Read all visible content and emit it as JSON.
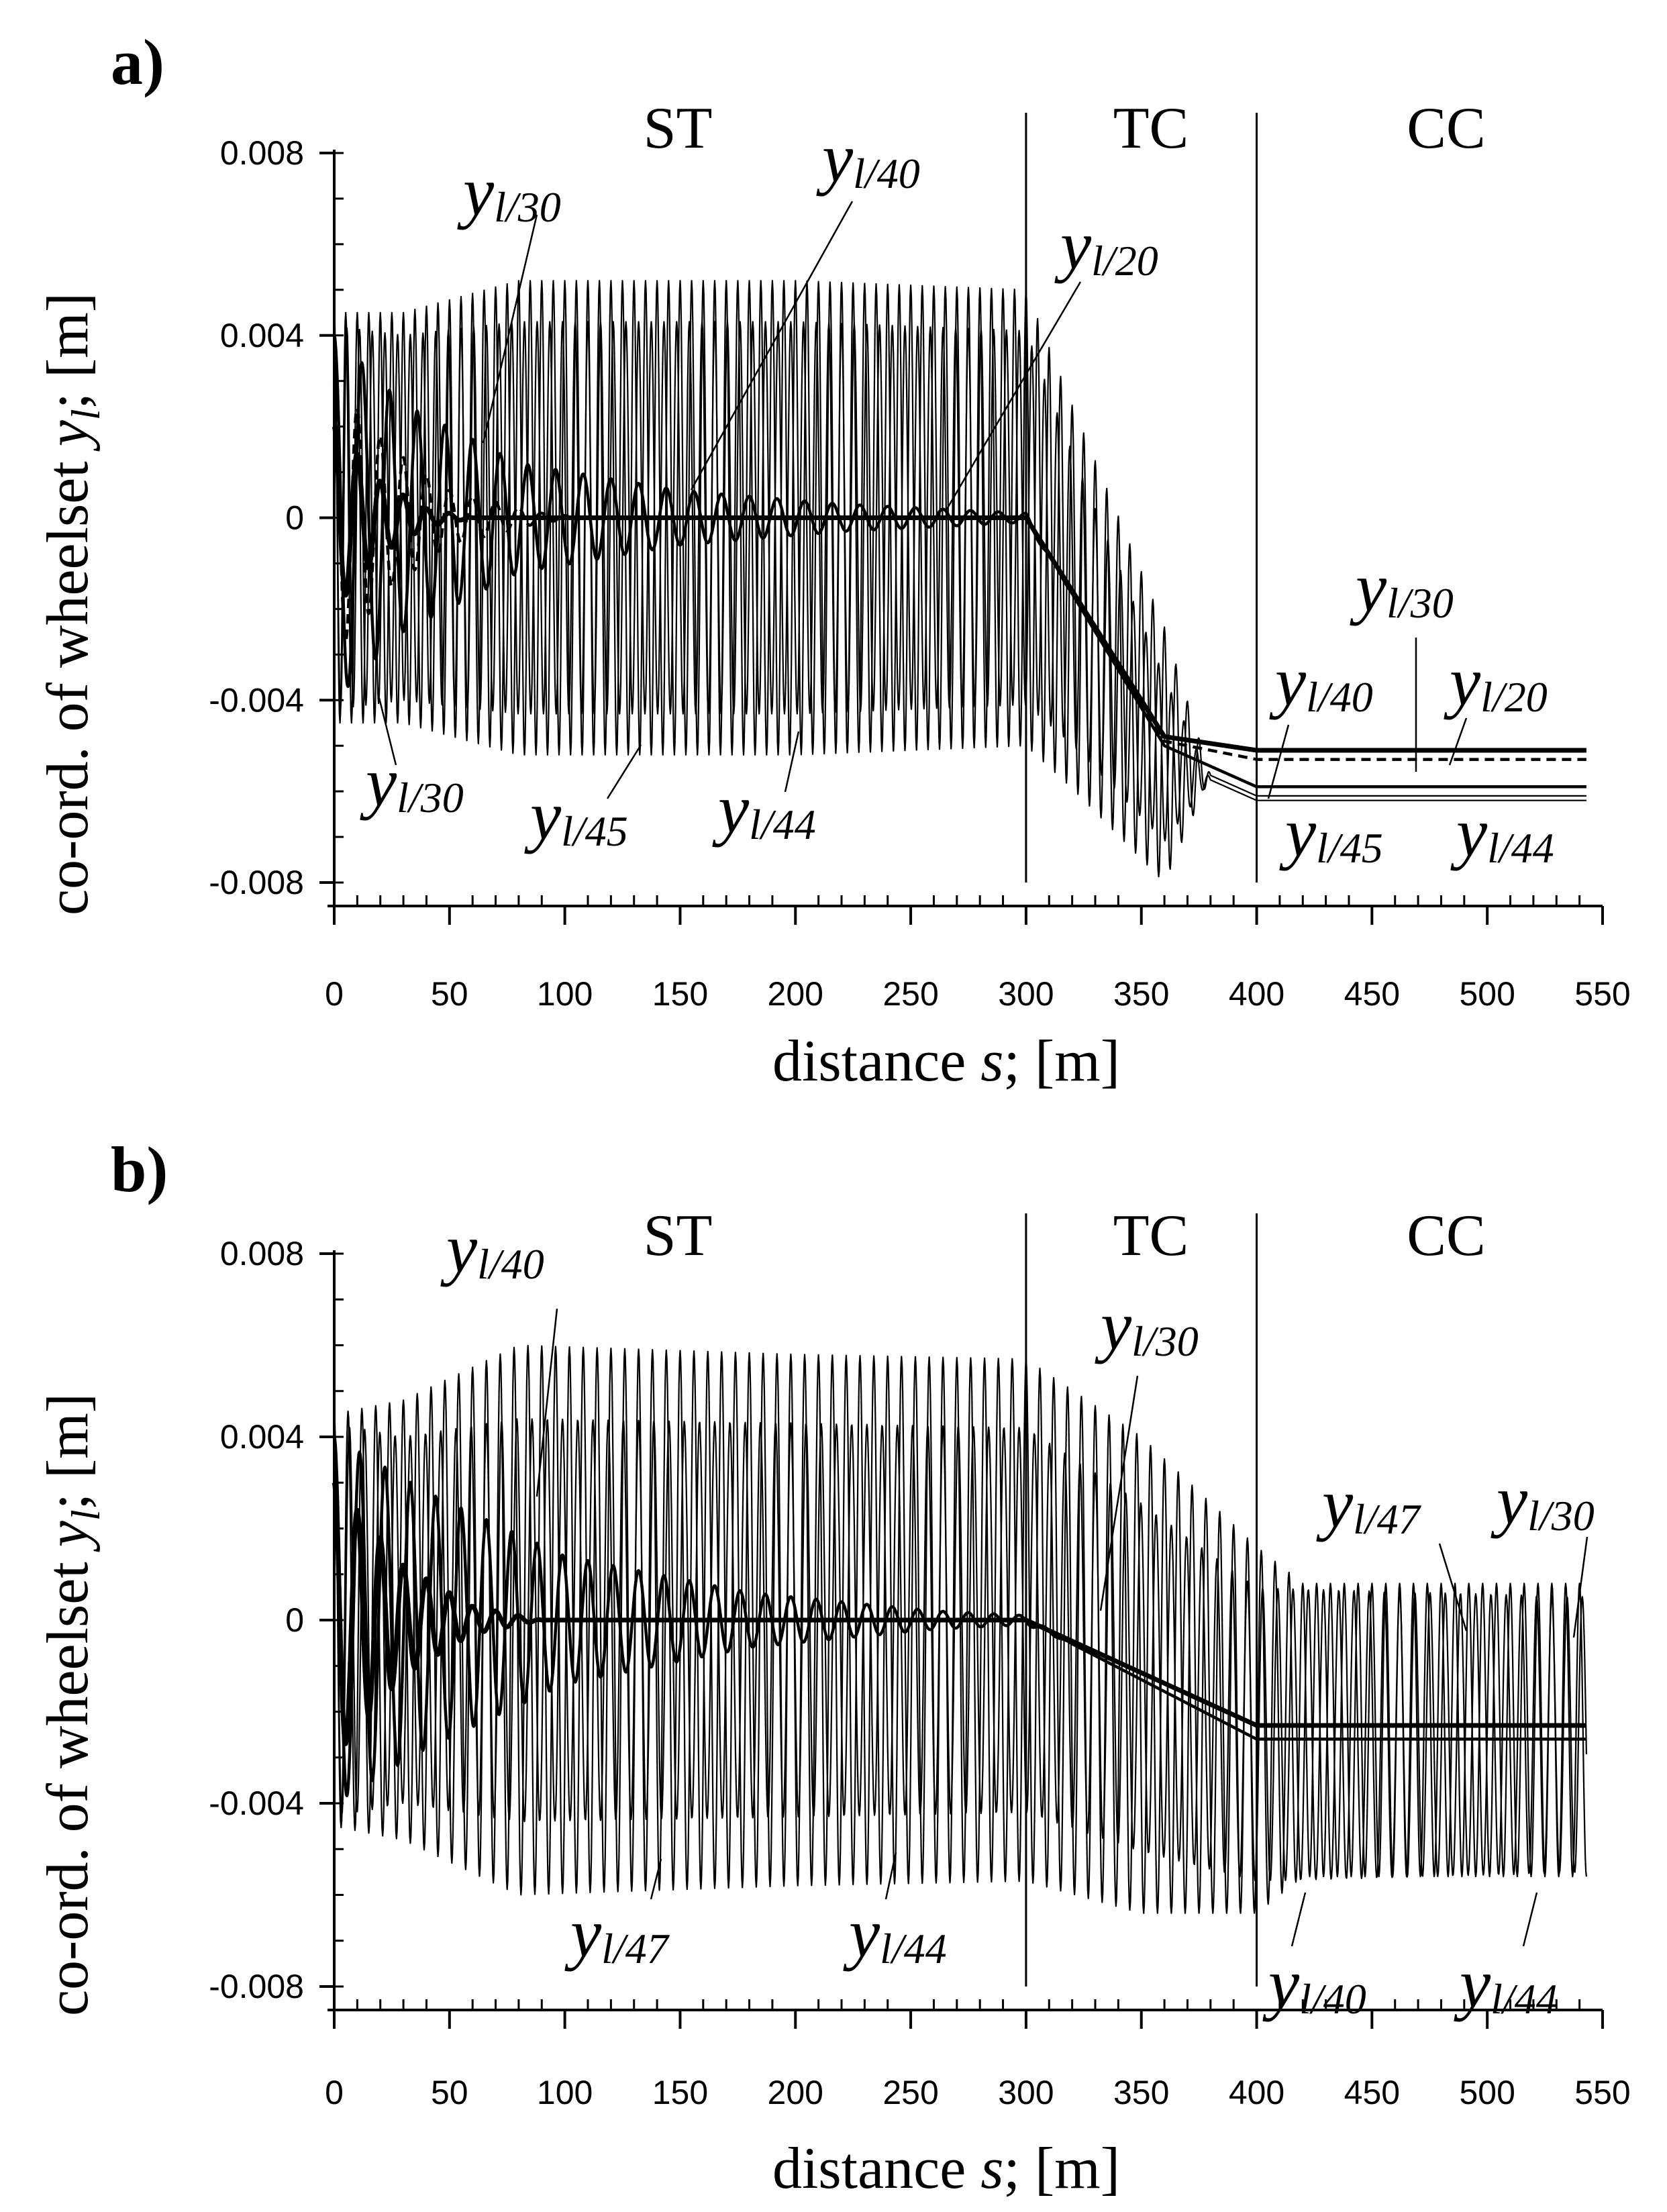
{
  "chart_data": [
    {
      "panel": "a)",
      "type": "line",
      "xlabel_prefix": "distance ",
      "xlabel_var": "s",
      "xlabel_suffix": "; [m]",
      "ylabel_prefix": "co-ord. of wheelset ",
      "ylabel_var": "y",
      "ylabel_sub": "l",
      "ylabel_suffix": "; [m]",
      "xlim": [
        0,
        550
      ],
      "ylim": [
        -0.008,
        0.008
      ],
      "xticks": [
        0,
        50,
        100,
        150,
        200,
        250,
        300,
        350,
        400,
        450,
        500,
        550
      ],
      "xtick_labels": [
        "0",
        "50",
        "100",
        "150",
        "200",
        "250",
        "300",
        "350",
        "400",
        "450",
        "500",
        "550"
      ],
      "yticks": [
        0.008,
        0.004,
        0,
        -0.004,
        -0.008
      ],
      "ytick_labels": [
        "0.008",
        "0.004",
        "0",
        "-0.004",
        "-0.008"
      ],
      "regions": [
        {
          "label": "ST",
          "start": 0,
          "end": 300
        },
        {
          "label": "TC",
          "start": 300,
          "end": 400
        },
        {
          "label": "CC",
          "start": 400,
          "end": 550
        }
      ],
      "series": [
        {
          "name": "y_l/45",
          "style": "thin",
          "mode": "osc",
          "points": [
            [
              0,
              0.0045
            ],
            [
              30,
              0.0045
            ],
            [
              80,
              0.0052
            ],
            [
              200,
              0.0052
            ],
            [
              300,
              0.005
            ],
            [
              320,
              0.0042
            ],
            [
              360,
              0.0028
            ],
            [
              380,
              0
            ]
          ],
          "period": 5,
          "baseline": [
            [
              0,
              0
            ],
            [
              300,
              0
            ],
            [
              360,
              -0.0052
            ],
            [
              400,
              -0.0061
            ],
            [
              550,
              -0.0061
            ]
          ]
        },
        {
          "name": "y_l/44",
          "style": "thin",
          "mode": "osc",
          "points": [
            [
              0,
              0.0042
            ],
            [
              30,
              0.004
            ],
            [
              80,
              0.0043
            ],
            [
              200,
              0.0043
            ],
            [
              300,
              0.0041
            ],
            [
              320,
              0.0032
            ],
            [
              360,
              0.0018
            ],
            [
              380,
              0
            ]
          ],
          "period": 5.5,
          "baseline": [
            [
              0,
              0
            ],
            [
              300,
              0
            ],
            [
              360,
              -0.0053
            ],
            [
              400,
              -0.0062
            ],
            [
              550,
              -0.0062
            ]
          ]
        },
        {
          "name": "y_l/40",
          "style": "medium",
          "mode": "osc",
          "points": [
            [
              0,
              0.004
            ],
            [
              30,
              0.0025
            ],
            [
              80,
              0.0012
            ],
            [
              150,
              0.0006
            ],
            [
              220,
              0.0003
            ],
            [
              300,
              0.0001
            ],
            [
              320,
              0
            ]
          ],
          "period": 12,
          "baseline": [
            [
              0,
              0
            ],
            [
              300,
              0
            ],
            [
              360,
              -0.005
            ],
            [
              400,
              -0.0059
            ],
            [
              550,
              -0.0059
            ]
          ]
        },
        {
          "name": "y_l/30",
          "style": "dashed",
          "mode": "osc",
          "points": [
            [
              0,
              0.003
            ],
            [
              25,
              0.0015
            ],
            [
              50,
              0.0006
            ],
            [
              90,
              0.0001
            ],
            [
              110,
              0
            ]
          ],
          "period": 10,
          "baseline": [
            [
              0,
              0
            ],
            [
              300,
              0
            ],
            [
              360,
              -0.0049
            ],
            [
              400,
              -0.0053
            ],
            [
              550,
              -0.0053
            ]
          ]
        },
        {
          "name": "y_l/20",
          "style": "thick",
          "mode": "osc",
          "points": [
            [
              0,
              0.002
            ],
            [
              20,
              0.0008
            ],
            [
              40,
              0.0002
            ],
            [
              60,
              0
            ]
          ],
          "period": 10,
          "baseline": [
            [
              0,
              0
            ],
            [
              300,
              0
            ],
            [
              360,
              -0.0048
            ],
            [
              400,
              -0.0051
            ],
            [
              550,
              -0.0051
            ]
          ]
        }
      ],
      "annotations": [
        {
          "main": "y",
          "sub": "l/30"
        },
        {
          "main": "y",
          "sub": "l/40"
        },
        {
          "main": "y",
          "sub": "l/20"
        },
        {
          "main": "y",
          "sub": "l/30"
        },
        {
          "main": "y",
          "sub": "l/40"
        },
        {
          "main": "y",
          "sub": "l/20"
        },
        {
          "main": "y",
          "sub": "l/30"
        },
        {
          "main": "y",
          "sub": "l/45"
        },
        {
          "main": "y",
          "sub": "l/44"
        },
        {
          "main": "y",
          "sub": "l/45"
        },
        {
          "main": "y",
          "sub": "l/44"
        }
      ]
    },
    {
      "panel": "b)",
      "type": "line",
      "xlabel_prefix": "distance ",
      "xlabel_var": "s",
      "xlabel_suffix": "; [m]",
      "ylabel_prefix": "co-ord. of wheelset ",
      "ylabel_var": "y",
      "ylabel_sub": "l",
      "ylabel_suffix": "; [m]",
      "xlim": [
        0,
        550
      ],
      "ylim": [
        -0.008,
        0.008
      ],
      "xticks": [
        0,
        50,
        100,
        150,
        200,
        250,
        300,
        350,
        400,
        450,
        500,
        550
      ],
      "xtick_labels": [
        "0",
        "50",
        "100",
        "150",
        "200",
        "250",
        "300",
        "350",
        "400",
        "450",
        "500",
        "550"
      ],
      "yticks": [
        0.008,
        0.004,
        0,
        -0.004,
        -0.008
      ],
      "ytick_labels": [
        "0.008",
        "0.004",
        "0",
        "-0.004",
        "-0.008"
      ],
      "regions": [
        {
          "label": "ST",
          "start": 0,
          "end": 300
        },
        {
          "label": "TC",
          "start": 300,
          "end": 400
        },
        {
          "label": "CC",
          "start": 400,
          "end": 550
        }
      ],
      "series": [
        {
          "name": "y_l/47",
          "style": "thin",
          "mode": "osc",
          "points": [
            [
              0,
              0.0045
            ],
            [
              30,
              0.0048
            ],
            [
              80,
              0.006
            ],
            [
              200,
              0.0058
            ],
            [
              300,
              0.0057
            ],
            [
              350,
              0.0052
            ],
            [
              400,
              0.004
            ],
            [
              420,
              0.0032
            ],
            [
              550,
              0.0032
            ]
          ],
          "period": 6,
          "baseline": [
            [
              0,
              0
            ],
            [
              300,
              0
            ],
            [
              400,
              -0.0024
            ],
            [
              550,
              -0.0024
            ]
          ]
        },
        {
          "name": "y_l/44",
          "style": "thin",
          "mode": "osc",
          "points": [
            [
              0,
              0.0043
            ],
            [
              30,
              0.004
            ],
            [
              80,
              0.0044
            ],
            [
              200,
              0.0043
            ],
            [
              300,
              0.0042
            ],
            [
              350,
              0.0038
            ],
            [
              400,
              0.0032
            ],
            [
              550,
              0.003
            ]
          ],
          "period": 6.6,
          "baseline": [
            [
              0,
              0
            ],
            [
              300,
              0
            ],
            [
              400,
              -0.0025
            ],
            [
              550,
              -0.0025
            ]
          ]
        },
        {
          "name": "y_l/40",
          "style": "medium",
          "mode": "osc",
          "points": [
            [
              0,
              0.004
            ],
            [
              40,
              0.0028
            ],
            [
              100,
              0.0014
            ],
            [
              180,
              0.0006
            ],
            [
              260,
              0.0002
            ],
            [
              300,
              0.0001
            ],
            [
              320,
              0
            ]
          ],
          "period": 11,
          "baseline": [
            [
              0,
              0
            ],
            [
              300,
              0
            ],
            [
              400,
              -0.0026
            ],
            [
              550,
              -0.0026
            ]
          ]
        },
        {
          "name": "y_l/30",
          "style": "thick",
          "mode": "osc",
          "points": [
            [
              0,
              0.003
            ],
            [
              30,
              0.0012
            ],
            [
              60,
              0.0003
            ],
            [
              90,
              0
            ]
          ],
          "period": 10,
          "baseline": [
            [
              0,
              0
            ],
            [
              300,
              0
            ],
            [
              400,
              -0.0023
            ],
            [
              550,
              -0.0023
            ]
          ]
        }
      ],
      "annotations": [
        {
          "main": "y",
          "sub": "l/40"
        },
        {
          "main": "y",
          "sub": "l/30"
        },
        {
          "main": "y",
          "sub": "l/47"
        },
        {
          "main": "y",
          "sub": "l/30"
        },
        {
          "main": "y",
          "sub": "l/47"
        },
        {
          "main": "y",
          "sub": "l/44"
        },
        {
          "main": "y",
          "sub": "l/40"
        },
        {
          "main": "y",
          "sub": "l/44"
        }
      ]
    }
  ]
}
